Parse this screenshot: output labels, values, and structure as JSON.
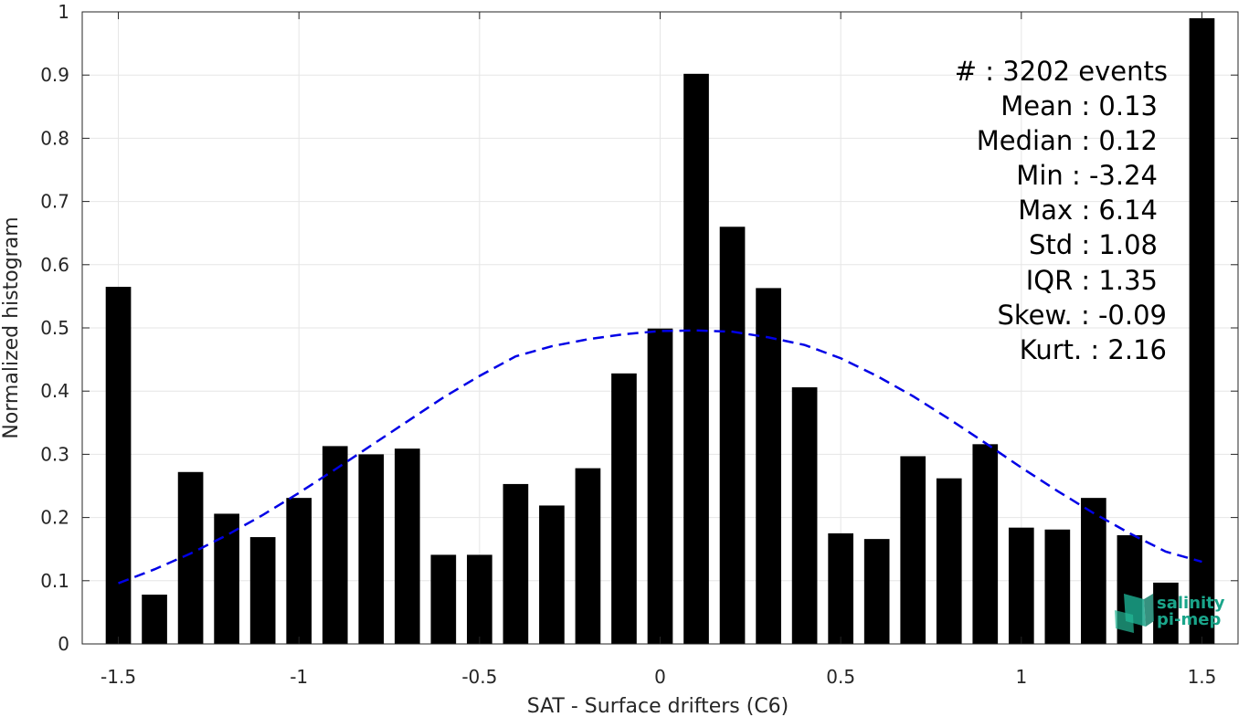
{
  "chart_data": {
    "type": "bar",
    "xlabel": "SAT - Surface drifters (C6)",
    "ylabel": "Normalized histogram",
    "xlim": [
      -1.6,
      1.6
    ],
    "ylim": [
      0,
      1
    ],
    "grid": true,
    "xticks": [
      "-1.5",
      "-1",
      "-0.5",
      "0",
      "0.5",
      "1",
      "1.5"
    ],
    "xtick_values": [
      -1.5,
      -1,
      -0.5,
      0,
      0.5,
      1,
      1.5
    ],
    "yticks": [
      "0",
      "0.1",
      "0.2",
      "0.3",
      "0.4",
      "0.5",
      "0.6",
      "0.7",
      "0.8",
      "0.9",
      "1"
    ],
    "ytick_values": [
      0,
      0.1,
      0.2,
      0.3,
      0.4,
      0.5,
      0.6,
      0.7,
      0.8,
      0.9,
      1
    ],
    "bar_color": "#000000",
    "bar_width": 0.07,
    "bars": [
      {
        "x": -1.5,
        "y": 0.565
      },
      {
        "x": -1.4,
        "y": 0.078
      },
      {
        "x": -1.3,
        "y": 0.272
      },
      {
        "x": -1.2,
        "y": 0.206
      },
      {
        "x": -1.1,
        "y": 0.169
      },
      {
        "x": -1.0,
        "y": 0.231
      },
      {
        "x": -0.9,
        "y": 0.313
      },
      {
        "x": -0.8,
        "y": 0.3
      },
      {
        "x": -0.7,
        "y": 0.309
      },
      {
        "x": -0.6,
        "y": 0.141
      },
      {
        "x": -0.5,
        "y": 0.141
      },
      {
        "x": -0.4,
        "y": 0.253
      },
      {
        "x": -0.3,
        "y": 0.219
      },
      {
        "x": -0.2,
        "y": 0.278
      },
      {
        "x": -0.1,
        "y": 0.428
      },
      {
        "x": 0.0,
        "y": 0.499
      },
      {
        "x": 0.1,
        "y": 0.902
      },
      {
        "x": 0.2,
        "y": 0.66
      },
      {
        "x": 0.3,
        "y": 0.563
      },
      {
        "x": 0.4,
        "y": 0.406
      },
      {
        "x": 0.5,
        "y": 0.175
      },
      {
        "x": 0.6,
        "y": 0.166
      },
      {
        "x": 0.7,
        "y": 0.297
      },
      {
        "x": 0.8,
        "y": 0.262
      },
      {
        "x": 0.9,
        "y": 0.316
      },
      {
        "x": 1.0,
        "y": 0.184
      },
      {
        "x": 1.1,
        "y": 0.181
      },
      {
        "x": 1.2,
        "y": 0.231
      },
      {
        "x": 1.3,
        "y": 0.172
      },
      {
        "x": 1.4,
        "y": 0.097
      },
      {
        "x": 1.5,
        "y": 0.99
      }
    ],
    "fit_curve": {
      "style": "dashed",
      "color": "#0000e6",
      "x": [
        -1.5,
        -1.4,
        -1.3,
        -1.2,
        -1.1,
        -1.0,
        -0.9,
        -0.8,
        -0.7,
        -0.6,
        -0.5,
        -0.4,
        -0.3,
        -0.2,
        -0.1,
        0.0,
        0.1,
        0.2,
        0.3,
        0.4,
        0.5,
        0.6,
        0.7,
        0.8,
        0.9,
        1.0,
        1.1,
        1.2,
        1.3,
        1.4,
        1.5
      ],
      "y": [
        0.096,
        0.118,
        0.143,
        0.172,
        0.204,
        0.239,
        0.276,
        0.314,
        0.352,
        0.39,
        0.424,
        0.455,
        0.471,
        0.482,
        0.49,
        0.495,
        0.496,
        0.494,
        0.485,
        0.473,
        0.452,
        0.424,
        0.392,
        0.356,
        0.318,
        0.279,
        0.242,
        0.207,
        0.175,
        0.146,
        0.13
      ]
    }
  },
  "stats": [
    "#  : 3202 events",
    "Mean : 0.13",
    "Median : 0.12",
    "Min : -3.24",
    "Max : 6.14",
    "Std : 1.08",
    "IQR : 1.35",
    "Skew. : -0.09",
    "Kurt. : 2.16"
  ],
  "logo": {
    "line1": "salinity",
    "line2": "pi-mep",
    "color": "#1aa58a"
  }
}
